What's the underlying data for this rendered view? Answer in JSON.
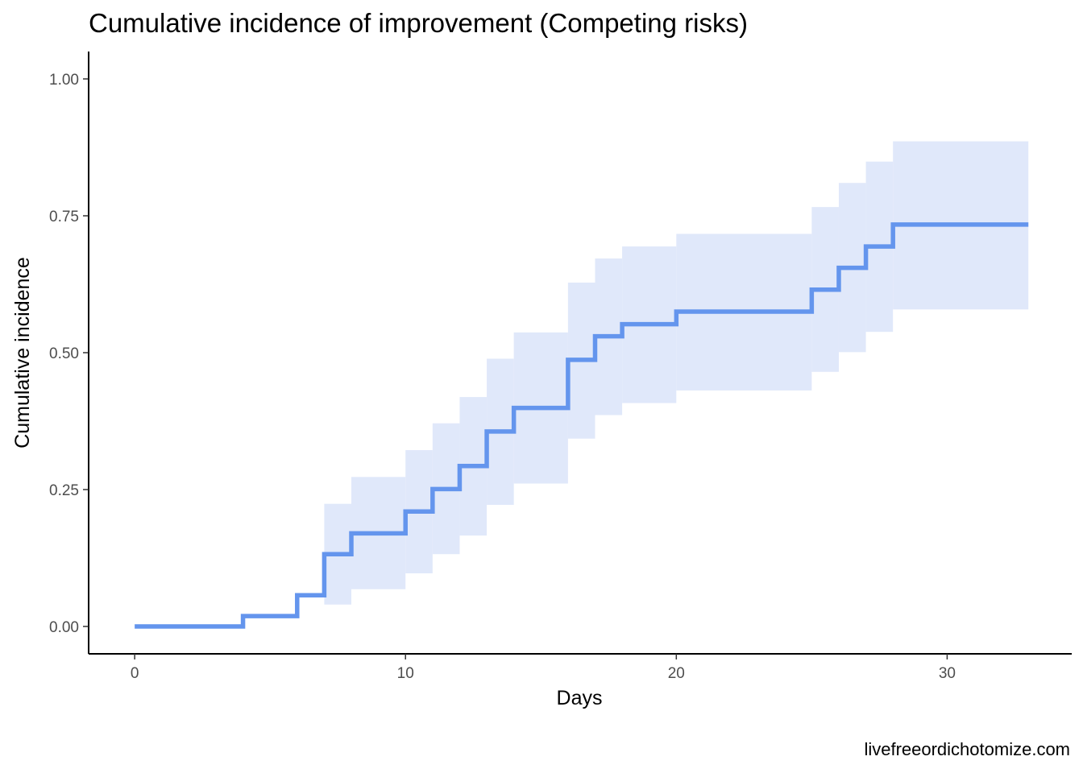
{
  "chart_data": {
    "type": "line",
    "style": "step",
    "title": "Cumulative incidence of improvement (Competing risks)",
    "xlabel": "Days",
    "ylabel": "Cumulative incidence",
    "xlim": [
      -1.7,
      34.6
    ],
    "ylim": [
      -0.05,
      1.05
    ],
    "x_ticks": [
      0,
      10,
      20,
      30
    ],
    "x_tick_labels": [
      "0",
      "10",
      "20",
      "30"
    ],
    "y_ticks": [
      0,
      0.25,
      0.5,
      0.75,
      1.0
    ],
    "y_tick_labels": [
      "0.00",
      "0.25",
      "0.50",
      "0.75",
      "1.00"
    ],
    "grid": false,
    "legend": "none",
    "colors": {
      "line": "#6495ED",
      "band": "#E0E8FA",
      "axis": "#000000"
    },
    "series": [
      {
        "x": [
          0,
          4,
          6,
          7,
          8,
          10,
          11,
          12,
          13,
          14,
          16,
          17,
          18,
          20,
          25,
          26,
          27,
          28,
          33
        ],
        "y": [
          0,
          0.019,
          0.057,
          0.132,
          0.17,
          0.21,
          0.251,
          0.293,
          0.356,
          0.399,
          0.487,
          0.53,
          0.552,
          0.575,
          0.615,
          0.655,
          0.694,
          0.734,
          0.734
        ],
        "lower": [
          0,
          0,
          0,
          0.04,
          0.068,
          0.097,
          0.132,
          0.166,
          0.222,
          0.261,
          0.343,
          0.386,
          0.408,
          0.431,
          0.465,
          0.501,
          0.538,
          0.579,
          0.579
        ],
        "upper": [
          0,
          0,
          0,
          0.224,
          0.273,
          0.322,
          0.371,
          0.419,
          0.489,
          0.537,
          0.628,
          0.672,
          0.694,
          0.717,
          0.766,
          0.81,
          0.849,
          0.886,
          0.886
        ]
      }
    ]
  },
  "caption": "livefreeordichotomize.com"
}
